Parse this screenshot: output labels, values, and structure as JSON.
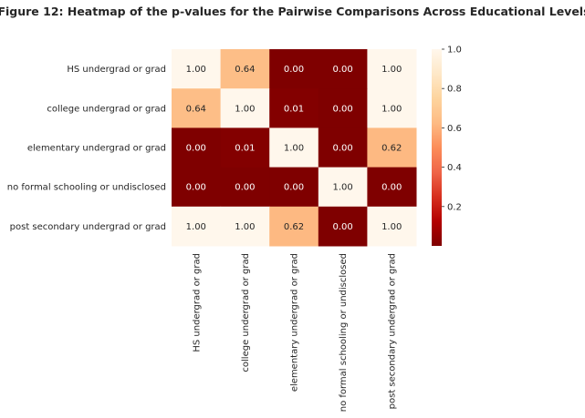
{
  "chart_data": {
    "type": "heatmap",
    "title": "Figure 12: Heatmap of the p-values for the Pairwise Comparisons Across Educational Levels",
    "row_labels": [
      "HS undergrad or grad",
      "college undergrad or grad",
      "elementary undergrad or grad",
      "no formal schooling or undisclosed",
      "post secondary undergrad or grad"
    ],
    "col_labels": [
      "HS undergrad or grad",
      "college undergrad or grad",
      "elementary undergrad or grad",
      "no formal schooling or undisclosed",
      "post secondary undergrad or grad"
    ],
    "values": [
      [
        1.0,
        0.64,
        0.0,
        0.0,
        1.0
      ],
      [
        0.64,
        1.0,
        0.01,
        0.0,
        1.0
      ],
      [
        0.0,
        0.01,
        1.0,
        0.0,
        0.62
      ],
      [
        0.0,
        0.0,
        0.0,
        1.0,
        0.0
      ],
      [
        1.0,
        1.0,
        0.62,
        0.0,
        1.0
      ]
    ],
    "value_format": "2 decimals",
    "colormap": "OrRd_r",
    "colorbar": {
      "range": [
        0,
        1
      ],
      "ticks": [
        0.2,
        0.4,
        0.6,
        0.8,
        1.0
      ],
      "tick_labels": [
        "0.2",
        "0.4",
        "0.6",
        "0.8",
        "1.0"
      ]
    },
    "grid": false
  }
}
